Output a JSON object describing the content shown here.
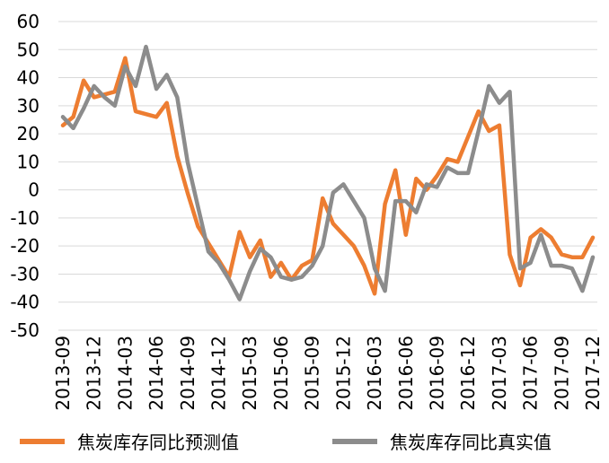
{
  "chart_data": {
    "type": "line",
    "title": "",
    "xlabel": "",
    "ylabel": "",
    "ylim": [
      -50,
      60
    ],
    "yticks": [
      60,
      50,
      40,
      30,
      20,
      10,
      0,
      -10,
      -20,
      -30,
      -40,
      -50
    ],
    "grid": "horizontal",
    "legend_position": "bottom",
    "x_tick_labels": [
      "2013-09",
      "2013-12",
      "2014-03",
      "2014-06",
      "2014-09",
      "2014-12",
      "2015-03",
      "2015-06",
      "2015-09",
      "2015-12",
      "2016-03",
      "2016-06",
      "2016-09",
      "2016-12",
      "2017-03",
      "2017-06",
      "2017-09",
      "2017-12"
    ],
    "x": [
      "2013-09",
      "2013-10",
      "2013-11",
      "2013-12",
      "2014-01",
      "2014-02",
      "2014-03",
      "2014-04",
      "2014-05",
      "2014-06",
      "2014-07",
      "2014-08",
      "2014-09",
      "2014-10",
      "2014-11",
      "2014-12",
      "2015-01",
      "2015-02",
      "2015-03",
      "2015-04",
      "2015-05",
      "2015-06",
      "2015-07",
      "2015-08",
      "2015-09",
      "2015-10",
      "2015-11",
      "2015-12",
      "2016-01",
      "2016-02",
      "2016-03",
      "2016-04",
      "2016-05",
      "2016-06",
      "2016-07",
      "2016-08",
      "2016-09",
      "2016-10",
      "2016-11",
      "2016-12",
      "2017-01",
      "2017-02",
      "2017-03",
      "2017-04",
      "2017-05",
      "2017-06",
      "2017-07",
      "2017-08",
      "2017-09",
      "2017-10",
      "2017-11",
      "2017-12"
    ],
    "series": [
      {
        "name": "焦炭库存同比预测值",
        "color": "#ED7D31",
        "values": [
          23,
          26,
          39,
          33,
          34,
          35,
          47,
          28,
          27,
          26,
          31,
          12,
          -1,
          -13,
          -19,
          -25,
          -31,
          -15,
          -24,
          -18,
          -31,
          -26,
          -32,
          -27,
          -25,
          -3,
          -12,
          -16,
          -20,
          -27,
          -37,
          -5,
          7,
          -16,
          4,
          0,
          5,
          11,
          10,
          19,
          28,
          21,
          23,
          -23,
          -34,
          -17,
          -14,
          -17,
          -23,
          -24,
          -24,
          -17
        ]
      },
      {
        "name": "焦炭库存同比真实值",
        "color": "#8C8C8C",
        "values": [
          26,
          22,
          29,
          37,
          33,
          30,
          44,
          37,
          51,
          36,
          41,
          33,
          10,
          -6,
          -22,
          -26,
          -32,
          -39,
          -29,
          -21,
          -24,
          -31,
          -32,
          -31,
          -27,
          -20,
          -1,
          2,
          -4,
          -10,
          -28,
          -36,
          -4,
          -4,
          -8,
          2,
          1,
          8,
          6,
          6,
          21,
          37,
          31,
          35,
          -28,
          -26,
          -16,
          -27,
          -27,
          -28,
          -36,
          -24
        ]
      }
    ]
  }
}
